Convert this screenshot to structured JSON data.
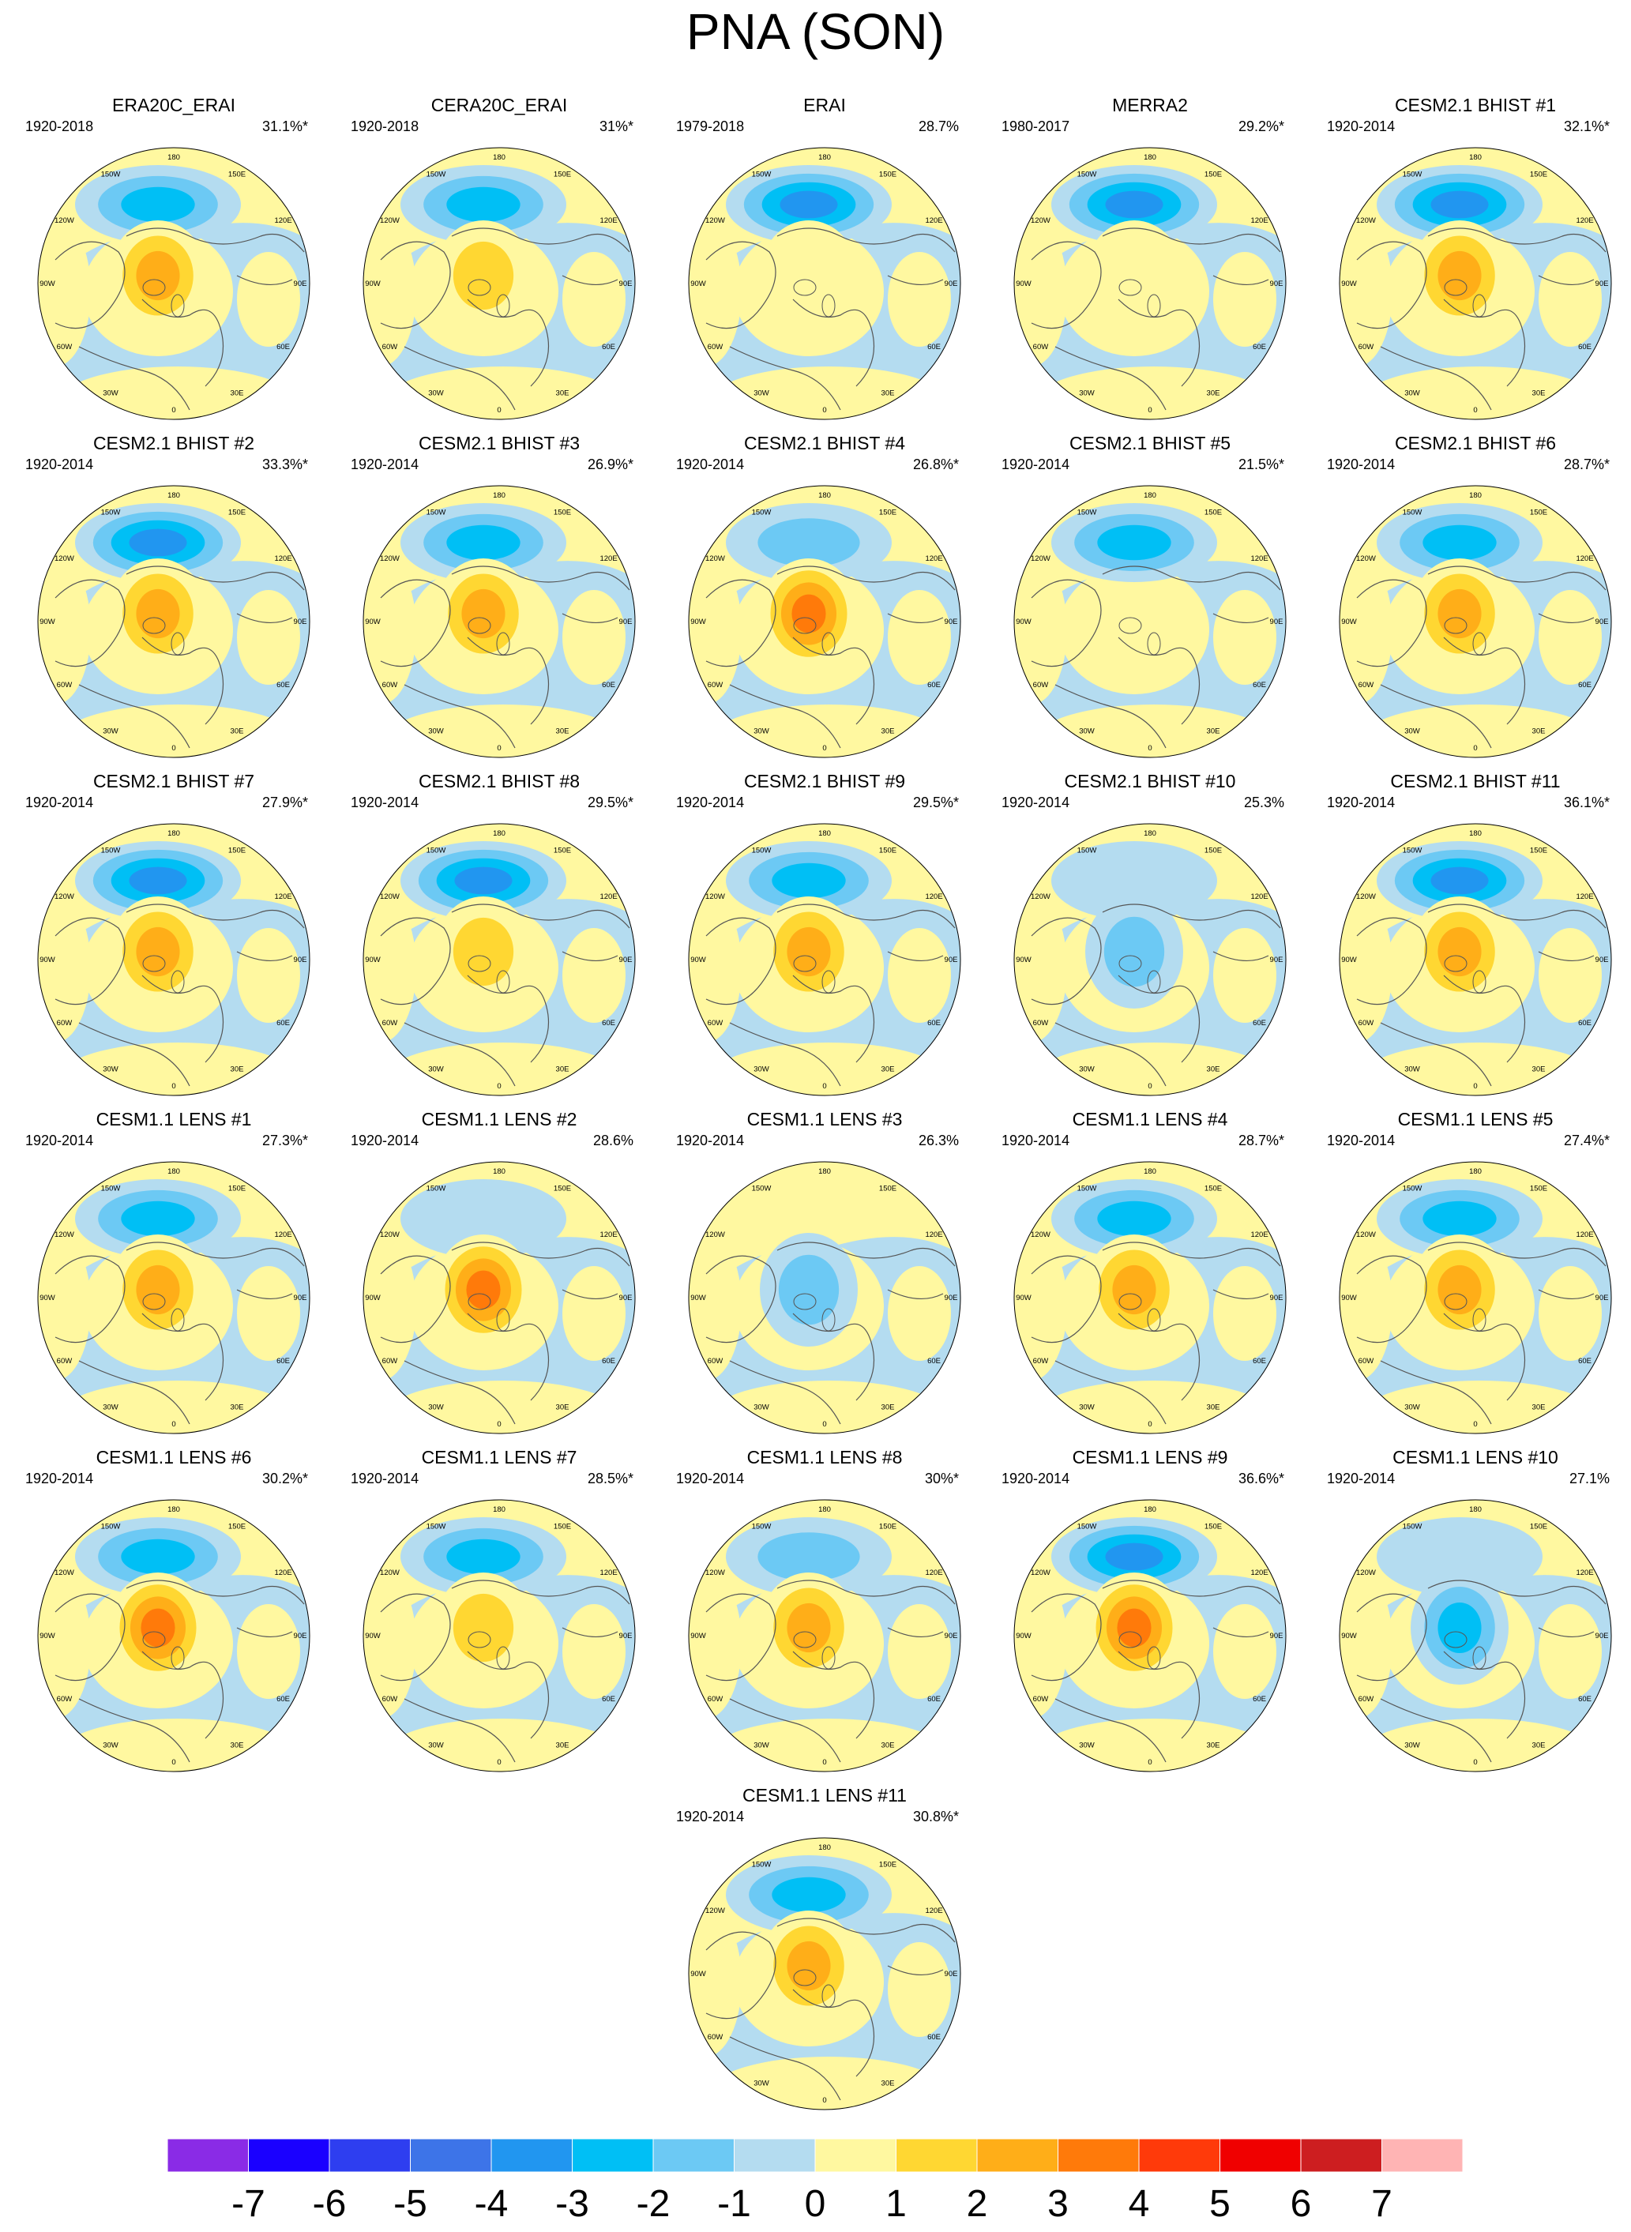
{
  "figure": {
    "title": "PNA (SON)"
  },
  "lon_labels": [
    "180",
    "150E",
    "120E",
    "90E",
    "60E",
    "30E",
    "0",
    "30W",
    "60W",
    "90W",
    "120W",
    "150W"
  ],
  "colors": {
    "ocean_lightblue": "#b4dcf0",
    "land_yellow": "#fff8a0",
    "coast": "#555555"
  },
  "chart_data": {
    "type": "contour-map-panels",
    "title": "PNA (SON)",
    "projection": "north polar stereographic",
    "panels": [
      {
        "title": "ERA20C_ERAI",
        "years": "1920-2018",
        "variance": "31.1%*",
        "pac_low": -3,
        "can_high": 3
      },
      {
        "title": "CERA20C_ERAI",
        "years": "1920-2018",
        "variance": "31%*",
        "pac_low": -3,
        "can_high": 2
      },
      {
        "title": "ERAI",
        "years": "1979-2018",
        "variance": "28.7%",
        "pac_low": -4,
        "can_high": 1
      },
      {
        "title": "MERRA2",
        "years": "1980-2017",
        "variance": "29.2%*",
        "pac_low": -4,
        "can_high": 1
      },
      {
        "title": "CESM2.1 BHIST #1",
        "years": "1920-2014",
        "variance": "32.1%*",
        "pac_low": -4,
        "can_high": 3
      },
      {
        "title": "CESM2.1 BHIST #2",
        "years": "1920-2014",
        "variance": "33.3%*",
        "pac_low": -4,
        "can_high": 3
      },
      {
        "title": "CESM2.1 BHIST #3",
        "years": "1920-2014",
        "variance": "26.9%*",
        "pac_low": -3,
        "can_high": 3
      },
      {
        "title": "CESM2.1 BHIST #4",
        "years": "1920-2014",
        "variance": "26.8%*",
        "pac_low": -2,
        "can_high": 4
      },
      {
        "title": "CESM2.1 BHIST #5",
        "years": "1920-2014",
        "variance": "21.5%*",
        "pac_low": -3,
        "can_high": 0
      },
      {
        "title": "CESM2.1 BHIST #6",
        "years": "1920-2014",
        "variance": "28.7%*",
        "pac_low": -3,
        "can_high": 3
      },
      {
        "title": "CESM2.1 BHIST #7",
        "years": "1920-2014",
        "variance": "27.9%*",
        "pac_low": -4,
        "can_high": 3
      },
      {
        "title": "CESM2.1 BHIST #8",
        "years": "1920-2014",
        "variance": "29.5%*",
        "pac_low": -4,
        "can_high": 2
      },
      {
        "title": "CESM2.1 BHIST #9",
        "years": "1920-2014",
        "variance": "29.5%*",
        "pac_low": -3,
        "can_high": 3
      },
      {
        "title": "CESM2.1 BHIST #10",
        "years": "1920-2014",
        "variance": "25.3%",
        "pac_low": -1,
        "can_high": -2
      },
      {
        "title": "CESM2.1 BHIST #11",
        "years": "1920-2014",
        "variance": "36.1%*",
        "pac_low": -4,
        "can_high": 3
      },
      {
        "title": "CESM1.1 LENS #1",
        "years": "1920-2014",
        "variance": "27.3%*",
        "pac_low": -3,
        "can_high": 3
      },
      {
        "title": "CESM1.1 LENS #2",
        "years": "1920-2014",
        "variance": "28.6%",
        "pac_low": -1,
        "can_high": 4
      },
      {
        "title": "CESM1.1 LENS #3",
        "years": "1920-2014",
        "variance": "26.3%",
        "pac_low": 0,
        "can_high": -2
      },
      {
        "title": "CESM1.1 LENS #4",
        "years": "1920-2014",
        "variance": "28.7%*",
        "pac_low": -3,
        "can_high": 3
      },
      {
        "title": "CESM1.1 LENS #5",
        "years": "1920-2014",
        "variance": "27.4%*",
        "pac_low": -3,
        "can_high": 3
      },
      {
        "title": "CESM1.1 LENS #6",
        "years": "1920-2014",
        "variance": "30.2%*",
        "pac_low": -3,
        "can_high": 4
      },
      {
        "title": "CESM1.1 LENS #7",
        "years": "1920-2014",
        "variance": "28.5%*",
        "pac_low": -3,
        "can_high": 2
      },
      {
        "title": "CESM1.1 LENS #8",
        "years": "1920-2014",
        "variance": "30%*",
        "pac_low": -2,
        "can_high": 3
      },
      {
        "title": "CESM1.1 LENS #9",
        "years": "1920-2014",
        "variance": "36.6%*",
        "pac_low": -4,
        "can_high": 4
      },
      {
        "title": "CESM1.1 LENS #10",
        "years": "1920-2014",
        "variance": "27.1%",
        "pac_low": -1,
        "can_high": -3
      },
      {
        "title": "CESM1.1 LENS #11",
        "years": "1920-2014",
        "variance": "30.8%*",
        "pac_low": -3,
        "can_high": 3
      }
    ],
    "colorbar": {
      "labels": [
        "-7",
        "-6",
        "-5",
        "-4",
        "-3",
        "-2",
        "-1",
        "0",
        "1",
        "2",
        "3",
        "4",
        "5",
        "6",
        "7"
      ],
      "colors": [
        "#8a2be6",
        "#1a00ff",
        "#2e3ef0",
        "#3d74e8",
        "#2196f0",
        "#00bff5",
        "#6cc9f4",
        "#b4dcf0",
        "#fff8a0",
        "#ffd732",
        "#ffae18",
        "#ff7a0a",
        "#ff3a0a",
        "#f00000",
        "#cd1e20",
        "#ffb4b4"
      ]
    }
  }
}
